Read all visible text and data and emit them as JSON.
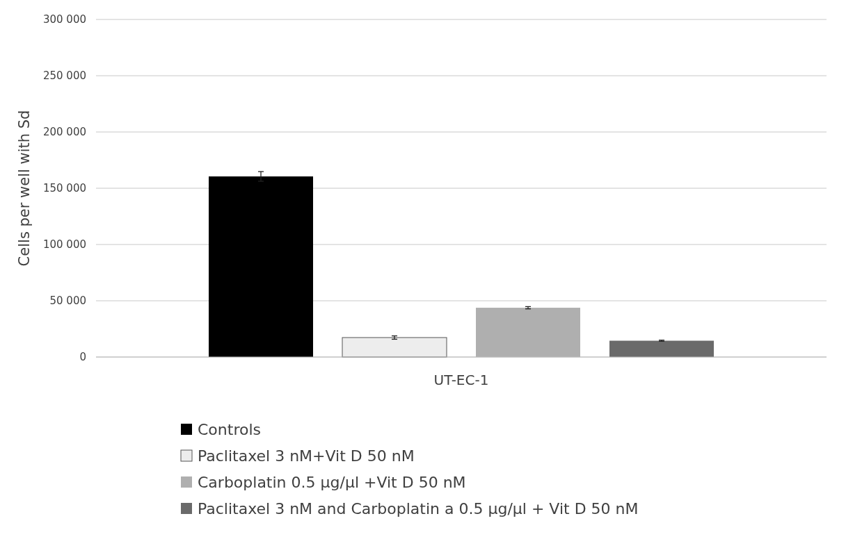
{
  "chart_data": {
    "type": "bar",
    "categories": [
      "UT-EC-1"
    ],
    "ylabel": "Cells per well with Sd",
    "ylim": [
      0,
      300000
    ],
    "yticks": [
      {
        "value": 0,
        "label": "0"
      },
      {
        "value": 50000,
        "label": "50 000"
      },
      {
        "value": 100000,
        "label": "100 000"
      },
      {
        "value": 150000,
        "label": "150 000"
      },
      {
        "value": 200000,
        "label": "200 000"
      },
      {
        "value": 250000,
        "label": "250 000"
      },
      {
        "value": 300000,
        "label": "300 000"
      }
    ],
    "grid": "y",
    "legend": "bottom",
    "series": [
      {
        "name": "Controls",
        "color": "#000000",
        "values": [
          160500
        ],
        "errors": [
          4300
        ]
      },
      {
        "name": "Paclitaxel 3 nM+Vit D 50 nM",
        "color": "#ededed",
        "values": [
          17300
        ],
        "errors": [
          1500
        ]
      },
      {
        "name": "Carboplatin 0.5 µg/µl +Vit D 50 nM",
        "color": "#afafaf",
        "values": [
          43800
        ],
        "errors": [
          1000
        ]
      },
      {
        "name": "Paclitaxel 3 nM and Carboplatin a 0.5 µg/µl + Vit D 50 nM",
        "color": "#6a6a6a",
        "values": [
          14500
        ],
        "errors": [
          500
        ]
      }
    ]
  }
}
